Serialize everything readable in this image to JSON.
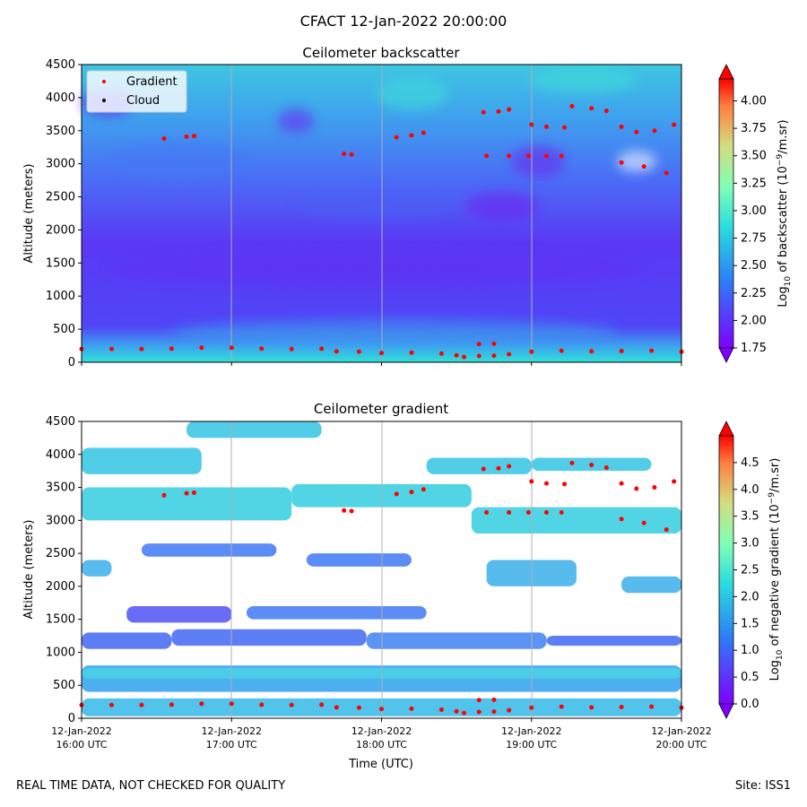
{
  "suptitle": "CFACT 12-Jan-2022 20:00:00",
  "footer": {
    "left": "REAL TIME DATA, NOT CHECKED FOR QUALITY",
    "right": "Site: ISS1"
  },
  "colors": {
    "gradient_marker": "#ff0000",
    "cloud_marker": "#000000",
    "background_low": "#6a2cf0",
    "background_mid": "#3fd3df",
    "grid": "#b0b0b0"
  },
  "chart_data": [
    {
      "type": "heatmap",
      "title": "Ceilometer backscatter",
      "xlabel": "",
      "ylabel": "Altitude (meters)",
      "ylim": [
        0,
        4500
      ],
      "yticks": [
        0,
        500,
        1000,
        1500,
        2000,
        2500,
        3000,
        3500,
        4000,
        4500
      ],
      "xlim_hours": [
        16,
        20
      ],
      "colorbar": {
        "label_prefix": "Log",
        "label_sub": "10",
        "label_mid": " of backscatter (10",
        "label_sup": "−9",
        "label_suffix": "/m.sr)",
        "range": [
          1.75,
          4.2
        ],
        "ticks": [
          "1.75",
          "2.00",
          "2.25",
          "2.50",
          "2.75",
          "3.00",
          "3.25",
          "3.50",
          "3.75",
          "4.00"
        ]
      },
      "legend": {
        "position": "top-left",
        "entries": [
          "Gradient",
          "Cloud"
        ]
      }
    },
    {
      "type": "heatmap",
      "title": "Ceilometer gradient",
      "xlabel": "Time (UTC)",
      "ylabel": "Altitude (meters)",
      "ylim": [
        0,
        4500
      ],
      "yticks": [
        0,
        500,
        1000,
        1500,
        2000,
        2500,
        3000,
        3500,
        4000,
        4500
      ],
      "xlim_hours": [
        16,
        20
      ],
      "xticks": [
        {
          "hour": 16,
          "date": "12-Jan-2022",
          "time": "16:00 UTC"
        },
        {
          "hour": 17,
          "date": "12-Jan-2022",
          "time": "17:00 UTC"
        },
        {
          "hour": 18,
          "date": "12-Jan-2022",
          "time": "18:00 UTC"
        },
        {
          "hour": 19,
          "date": "12-Jan-2022",
          "time": "19:00 UTC"
        },
        {
          "hour": 20,
          "date": "12-Jan-2022",
          "time": "20:00 UTC"
        }
      ],
      "colorbar": {
        "label_prefix": "Log",
        "label_sub": "10",
        "label_mid": " of negative gradient (10",
        "label_sup": "−9",
        "label_suffix": "/m.sr)",
        "range": [
          0.0,
          5.0
        ],
        "ticks": [
          "0.0",
          "0.5",
          "1.0",
          "1.5",
          "2.0",
          "2.5",
          "3.0",
          "3.5",
          "4.0",
          "4.5"
        ]
      }
    }
  ],
  "gradient_points": [
    {
      "t": 16.0,
      "alt": 200
    },
    {
      "t": 16.2,
      "alt": 200
    },
    {
      "t": 16.4,
      "alt": 200
    },
    {
      "t": 16.6,
      "alt": 205
    },
    {
      "t": 16.8,
      "alt": 220
    },
    {
      "t": 17.0,
      "alt": 220
    },
    {
      "t": 17.2,
      "alt": 205
    },
    {
      "t": 17.4,
      "alt": 200
    },
    {
      "t": 17.6,
      "alt": 205
    },
    {
      "t": 17.7,
      "alt": 165
    },
    {
      "t": 17.85,
      "alt": 160
    },
    {
      "t": 18.0,
      "alt": 140
    },
    {
      "t": 18.2,
      "alt": 145
    },
    {
      "t": 18.4,
      "alt": 130
    },
    {
      "t": 18.5,
      "alt": 105
    },
    {
      "t": 18.55,
      "alt": 80
    },
    {
      "t": 18.65,
      "alt": 95
    },
    {
      "t": 18.75,
      "alt": 100
    },
    {
      "t": 18.85,
      "alt": 120
    },
    {
      "t": 19.0,
      "alt": 160
    },
    {
      "t": 19.2,
      "alt": 175
    },
    {
      "t": 19.4,
      "alt": 165
    },
    {
      "t": 19.6,
      "alt": 170
    },
    {
      "t": 19.8,
      "alt": 175
    },
    {
      "t": 20.0,
      "alt": 160
    },
    {
      "t": 18.65,
      "alt": 275
    },
    {
      "t": 18.75,
      "alt": 280
    },
    {
      "t": 16.55,
      "alt": 3380
    },
    {
      "t": 16.7,
      "alt": 3410
    },
    {
      "t": 16.75,
      "alt": 3420
    },
    {
      "t": 17.75,
      "alt": 3150
    },
    {
      "t": 17.8,
      "alt": 3140
    },
    {
      "t": 18.1,
      "alt": 3400
    },
    {
      "t": 18.2,
      "alt": 3430
    },
    {
      "t": 18.28,
      "alt": 3470
    },
    {
      "t": 18.68,
      "alt": 3780
    },
    {
      "t": 18.78,
      "alt": 3790
    },
    {
      "t": 18.85,
      "alt": 3820
    },
    {
      "t": 18.7,
      "alt": 3120
    },
    {
      "t": 18.85,
      "alt": 3120
    },
    {
      "t": 18.98,
      "alt": 3120
    },
    {
      "t": 19.0,
      "alt": 3590
    },
    {
      "t": 19.1,
      "alt": 3560
    },
    {
      "t": 19.22,
      "alt": 3550
    },
    {
      "t": 19.1,
      "alt": 3120
    },
    {
      "t": 19.2,
      "alt": 3120
    },
    {
      "t": 19.27,
      "alt": 3870
    },
    {
      "t": 19.4,
      "alt": 3840
    },
    {
      "t": 19.5,
      "alt": 3800
    },
    {
      "t": 19.6,
      "alt": 3560
    },
    {
      "t": 19.7,
      "alt": 3480
    },
    {
      "t": 19.82,
      "alt": 3500
    },
    {
      "t": 19.6,
      "alt": 3020
    },
    {
      "t": 19.75,
      "alt": 2960
    },
    {
      "t": 19.9,
      "alt": 2860
    },
    {
      "t": 19.95,
      "alt": 3590
    }
  ]
}
